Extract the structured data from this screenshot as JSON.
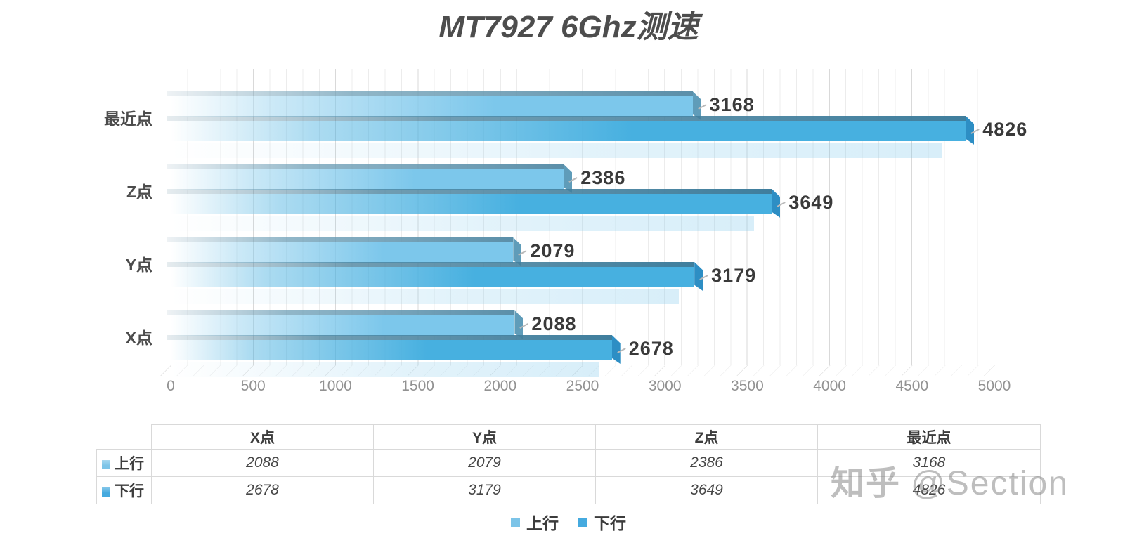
{
  "title": "MT7927 6Ghz测速",
  "chart_data": {
    "type": "bar",
    "orientation": "horizontal",
    "title": "MT7927 6Ghz测速",
    "categories": [
      "最近点",
      "Z点",
      "Y点",
      "X点"
    ],
    "series": [
      {
        "name": "上行",
        "color": "#7cc4e8",
        "values": [
          3168,
          2386,
          2079,
          2088
        ]
      },
      {
        "name": "下行",
        "color": "#45aadf",
        "values": [
          4826,
          3649,
          3179,
          2678
        ]
      }
    ],
    "xlabel": "",
    "ylabel": "",
    "xlim": [
      0,
      5000
    ],
    "x_ticks": [
      0,
      500,
      1000,
      1500,
      2000,
      2500,
      3000,
      3500,
      4000,
      4500,
      5000
    ],
    "x_minor_step": 100,
    "grid": true,
    "legend_position": "bottom"
  },
  "table": {
    "headers": [
      "",
      "X点",
      "Y点",
      "Z点",
      "最近点"
    ],
    "rows": [
      {
        "label": "上行",
        "marker_color": "#7cc4e8",
        "values": [
          "2088",
          "2079",
          "2386",
          "3168"
        ]
      },
      {
        "label": "下行",
        "marker_color": "#45aadf",
        "values": [
          "2678",
          "3179",
          "3649",
          "4826"
        ]
      }
    ]
  },
  "legend": {
    "items": [
      {
        "label": "上行",
        "color": "#7cc4e8"
      },
      {
        "label": "下行",
        "color": "#45aadf"
      }
    ]
  },
  "watermark": {
    "brand": "知乎",
    "handle": "@Section"
  }
}
